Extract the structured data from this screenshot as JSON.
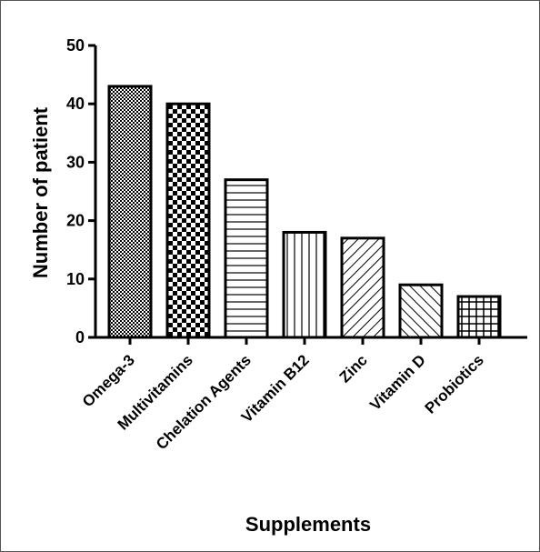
{
  "chart_data": {
    "type": "bar",
    "title": "",
    "xlabel": "Supplements",
    "ylabel": "Number of patient",
    "ylim": [
      0,
      50
    ],
    "yticks": [
      "0",
      "10",
      "20",
      "30",
      "40",
      "50"
    ],
    "categories": [
      "Omega-3",
      "Multivitamins",
      "Chelation Agents",
      "Vitamin B12",
      "Zinc",
      "Vitamin D",
      "Probiotics"
    ],
    "values": [
      43,
      40,
      27,
      18,
      17,
      9,
      7
    ],
    "patterns": [
      "fine-dots",
      "checker",
      "horizontal-lines",
      "vertical-lines",
      "diagonal-right",
      "diagonal-left",
      "grid"
    ],
    "bar_fill": "#ffffff",
    "stroke_color": "#000000",
    "grid": false,
    "legend": "none"
  }
}
